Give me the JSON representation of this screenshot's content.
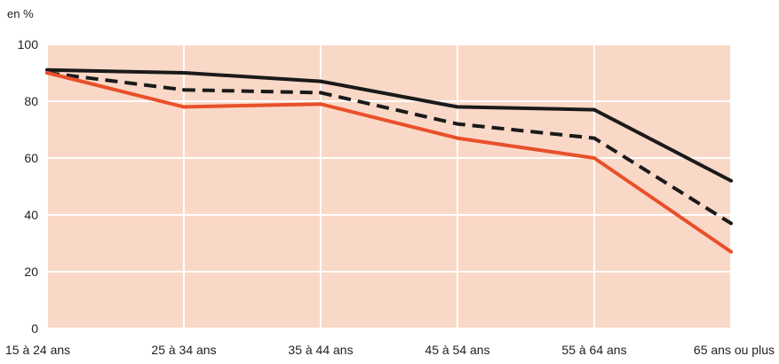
{
  "chart_data": {
    "type": "line",
    "unit_label": "en %",
    "categories": [
      "15 à 24 ans",
      "25 à 34 ans",
      "35 à 44 ans",
      "45 à 54 ans",
      "55 à 64 ans",
      "65 ans ou plus"
    ],
    "ylim": [
      0,
      100
    ],
    "yticks": [
      0,
      20,
      40,
      60,
      80,
      100
    ],
    "grid": true,
    "legend": "none",
    "plot_background": "#f9d8c7",
    "grid_color": "#ffffff",
    "series": [
      {
        "values": [
          91,
          90,
          87,
          78,
          77,
          52
        ],
        "color": "#1a1a1a",
        "style": "solid"
      },
      {
        "values": [
          90,
          84,
          83,
          72,
          67,
          37
        ],
        "color": "#1a1a1a",
        "style": "dashed"
      },
      {
        "values": [
          90,
          78,
          79,
          67,
          60,
          27
        ],
        "color": "#e8502a",
        "style": "solid"
      }
    ]
  }
}
